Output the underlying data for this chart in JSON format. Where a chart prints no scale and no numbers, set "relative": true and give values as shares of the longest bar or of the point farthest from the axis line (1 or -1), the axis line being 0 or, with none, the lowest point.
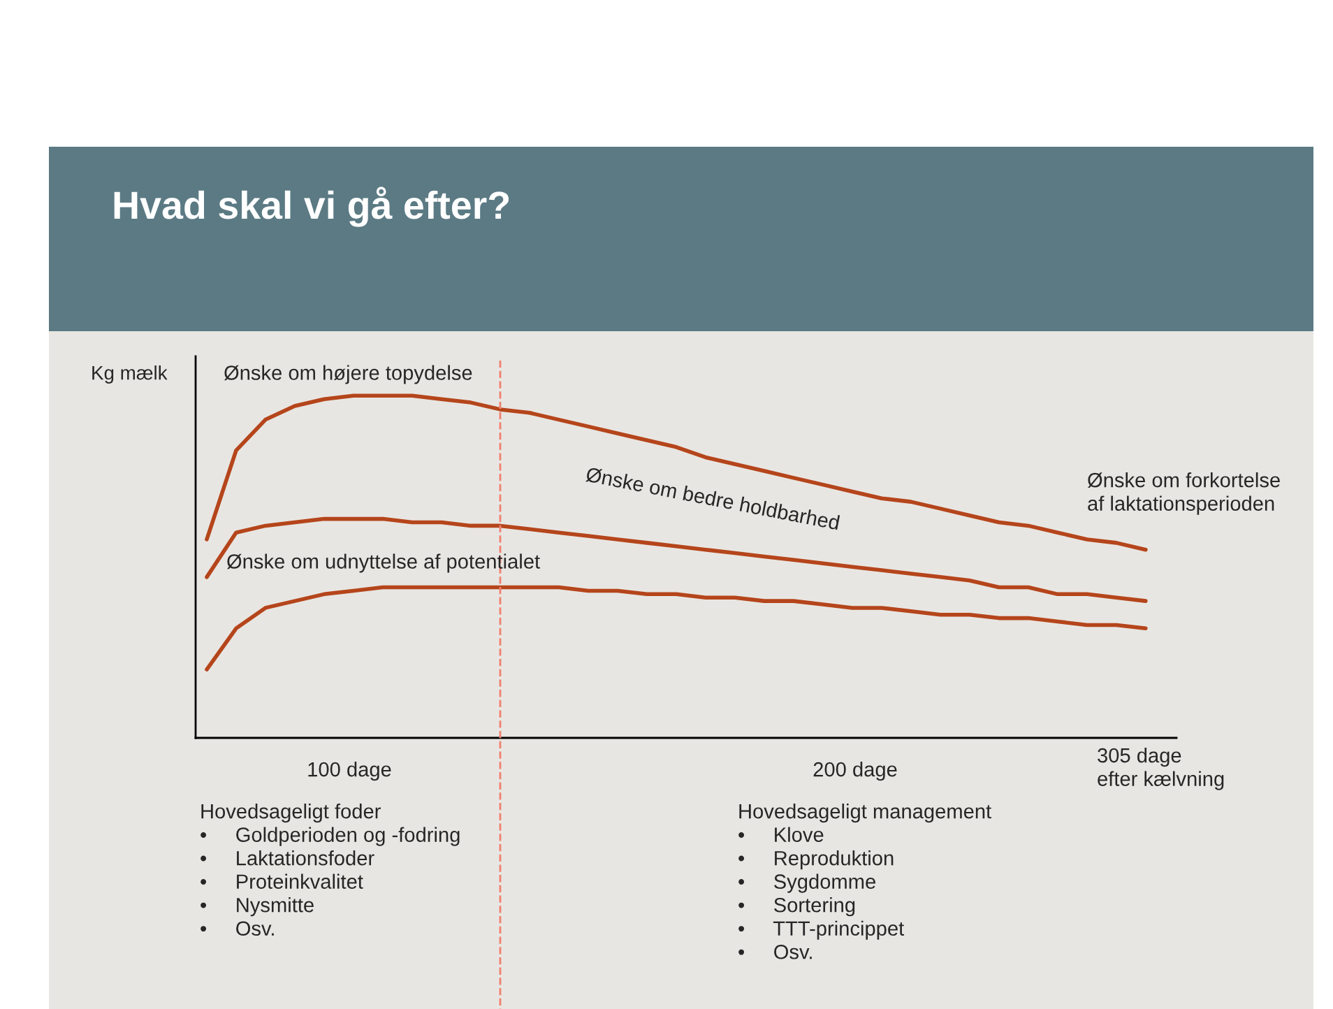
{
  "chart_data": {
    "type": "line",
    "title": "Hvad skal vi gå efter?",
    "ylabel": "Kg mælk",
    "relative": true,
    "categories": [
      null,
      null,
      null,
      null,
      null,
      null,
      null,
      null,
      null,
      null,
      null,
      null,
      null,
      null,
      null,
      null,
      null,
      null,
      null,
      null,
      null,
      null,
      null,
      null,
      null,
      null,
      null,
      null,
      null,
      null,
      null,
      null,
      null
    ],
    "series": [
      {
        "color": "#b5451b",
        "values": [
          0.58,
          0.84,
          0.93,
          0.97,
          0.99,
          1.0,
          1.0,
          1.0,
          0.99,
          0.98,
          0.96,
          0.95,
          0.93,
          0.91,
          0.89,
          0.87,
          0.85,
          0.82,
          0.8,
          0.78,
          0.76,
          0.74,
          0.72,
          0.7,
          0.69,
          0.67,
          0.65,
          0.63,
          0.62,
          0.6,
          0.58,
          0.57,
          0.55
        ]
      },
      {
        "color": "#b5451b",
        "values": [
          0.47,
          0.6,
          0.62,
          0.63,
          0.64,
          0.64,
          0.64,
          0.63,
          0.63,
          0.62,
          0.62,
          0.61,
          0.6,
          0.59,
          0.58,
          0.57,
          0.56,
          0.55,
          0.54,
          0.53,
          0.52,
          0.51,
          0.5,
          0.49,
          0.48,
          0.47,
          0.46,
          0.44,
          0.44,
          0.42,
          0.42,
          0.41,
          0.4
        ]
      },
      {
        "color": "#b5451b",
        "values": [
          0.2,
          0.32,
          0.38,
          0.4,
          0.42,
          0.43,
          0.44,
          0.44,
          0.44,
          0.44,
          0.44,
          0.44,
          0.44,
          0.43,
          0.43,
          0.42,
          0.42,
          0.41,
          0.41,
          0.4,
          0.4,
          0.39,
          0.38,
          0.38,
          0.37,
          0.36,
          0.36,
          0.35,
          0.35,
          0.34,
          0.33,
          0.33,
          0.32
        ]
      }
    ],
    "annotations": [
      "Ønske om højere topydelse",
      "Ønske om bedre holdbarhed",
      "Ønske om udnyttelse af potentialet",
      "Ønske om forkortelse\naf laktationsperioden",
      "100 dage",
      "200 dage",
      "305 dage\nefter kælvning",
      "Hovedsageligt foder\n•     Goldperioden og -fodring\n•     Laktationsfoder\n•     Proteinkvalitet\n•     Nysmitte\n•     Osv.",
      "Hovedsageligt management\n•     Klove\n•     Reproduktion\n•     Sygdomme\n•     Sortering\n•     TTT-princippet\n•     Osv."
    ]
  }
}
